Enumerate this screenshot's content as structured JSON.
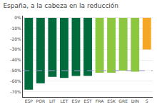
{
  "chart_data": {
    "type": "bar",
    "title": "España, a la cabeza en la reducción",
    "categories": [
      "ESP",
      "POR",
      "LIT",
      "LET",
      "ESV",
      "EST",
      "FRA",
      "ESK",
      "GRE",
      "DIN",
      "S"
    ],
    "values": [
      -68,
      -62,
      -56,
      -57,
      -55,
      -55,
      -52,
      -52,
      -50,
      -51,
      -30
    ],
    "colors": [
      "#006b3c",
      "#006b3c",
      "#006b3c",
      "#006b3c",
      "#006b3c",
      "#006b3c",
      "#8dc63f",
      "#8dc63f",
      "#8dc63f",
      "#8dc63f",
      "#f5a623"
    ],
    "ylim": [
      -75,
      2
    ],
    "yticks": [
      {
        "value": 0,
        "label": "0%"
      },
      {
        "value": -10,
        "label": "-10%"
      },
      {
        "value": -20,
        "label": "-20%"
      },
      {
        "value": -30,
        "label": "-30%"
      },
      {
        "value": -40,
        "label": "-40%"
      },
      {
        "value": -50,
        "label": "-50%"
      },
      {
        "value": -60,
        "label": "-60%"
      },
      {
        "value": -70,
        "label": "-70%"
      }
    ],
    "reference_line": {
      "y": -50,
      "color": "#9999cc",
      "line_style": "dashed"
    },
    "grid": true
  }
}
